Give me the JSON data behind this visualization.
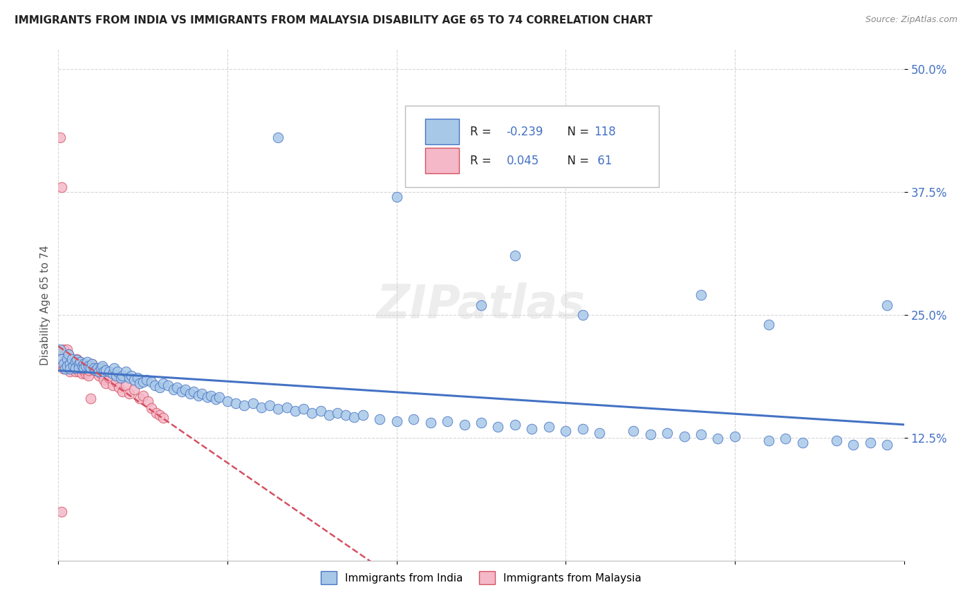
{
  "title": "IMMIGRANTS FROM INDIA VS IMMIGRANTS FROM MALAYSIA DISABILITY AGE 65 TO 74 CORRELATION CHART",
  "source": "Source: ZipAtlas.com",
  "ylabel": "Disability Age 65 to 74",
  "legend_india": "Immigrants from India",
  "legend_malaysia": "Immigrants from Malaysia",
  "R_india": -0.239,
  "N_india": 118,
  "R_malaysia": 0.045,
  "N_malaysia": 61,
  "color_india": "#a8c8e8",
  "color_malaysia": "#f4b8c8",
  "color_india_line": "#4472c4",
  "color_malaysia_line": "#d45060",
  "watermark": "ZIPatlas",
  "india_x": [
    0.001,
    0.002,
    0.003,
    0.004,
    0.005,
    0.005,
    0.006,
    0.007,
    0.007,
    0.008,
    0.009,
    0.01,
    0.01,
    0.011,
    0.012,
    0.012,
    0.013,
    0.014,
    0.015,
    0.015,
    0.016,
    0.017,
    0.018,
    0.019,
    0.02,
    0.021,
    0.022,
    0.023,
    0.024,
    0.025,
    0.026,
    0.027,
    0.028,
    0.03,
    0.032,
    0.033,
    0.034,
    0.035,
    0.037,
    0.038,
    0.04,
    0.042,
    0.043,
    0.045,
    0.047,
    0.048,
    0.05,
    0.052,
    0.055,
    0.057,
    0.06,
    0.062,
    0.065,
    0.068,
    0.07,
    0.073,
    0.075,
    0.078,
    0.08,
    0.083,
    0.085,
    0.088,
    0.09,
    0.093,
    0.095,
    0.1,
    0.105,
    0.11,
    0.115,
    0.12,
    0.125,
    0.13,
    0.135,
    0.14,
    0.145,
    0.15,
    0.155,
    0.16,
    0.165,
    0.17,
    0.175,
    0.18,
    0.19,
    0.2,
    0.21,
    0.22,
    0.23,
    0.24,
    0.25,
    0.26,
    0.27,
    0.28,
    0.29,
    0.3,
    0.31,
    0.32,
    0.34,
    0.35,
    0.36,
    0.37,
    0.38,
    0.39,
    0.4,
    0.42,
    0.43,
    0.44,
    0.46,
    0.47,
    0.48,
    0.49,
    0.25,
    0.31,
    0.38,
    0.42,
    0.49,
    0.13,
    0.2,
    0.27
  ],
  "india_y": [
    0.215,
    0.205,
    0.2,
    0.195,
    0.205,
    0.198,
    0.21,
    0.2,
    0.195,
    0.205,
    0.198,
    0.202,
    0.196,
    0.204,
    0.2,
    0.196,
    0.202,
    0.198,
    0.2,
    0.196,
    0.198,
    0.202,
    0.198,
    0.196,
    0.2,
    0.196,
    0.194,
    0.196,
    0.192,
    0.196,
    0.198,
    0.192,
    0.194,
    0.192,
    0.19,
    0.196,
    0.188,
    0.192,
    0.186,
    0.188,
    0.192,
    0.186,
    0.188,
    0.184,
    0.186,
    0.18,
    0.182,
    0.184,
    0.182,
    0.178,
    0.176,
    0.18,
    0.178,
    0.174,
    0.176,
    0.172,
    0.174,
    0.17,
    0.172,
    0.168,
    0.17,
    0.166,
    0.168,
    0.164,
    0.166,
    0.162,
    0.16,
    0.158,
    0.16,
    0.156,
    0.158,
    0.154,
    0.156,
    0.152,
    0.154,
    0.15,
    0.152,
    0.148,
    0.15,
    0.148,
    0.146,
    0.148,
    0.144,
    0.142,
    0.144,
    0.14,
    0.142,
    0.138,
    0.14,
    0.136,
    0.138,
    0.134,
    0.136,
    0.132,
    0.134,
    0.13,
    0.132,
    0.128,
    0.13,
    0.126,
    0.128,
    0.124,
    0.126,
    0.122,
    0.124,
    0.12,
    0.122,
    0.118,
    0.12,
    0.118,
    0.26,
    0.25,
    0.27,
    0.24,
    0.26,
    0.43,
    0.37,
    0.31
  ],
  "malaysia_x": [
    0.001,
    0.002,
    0.002,
    0.003,
    0.003,
    0.004,
    0.004,
    0.005,
    0.005,
    0.006,
    0.006,
    0.007,
    0.007,
    0.008,
    0.008,
    0.009,
    0.009,
    0.01,
    0.01,
    0.011,
    0.011,
    0.012,
    0.012,
    0.013,
    0.013,
    0.014,
    0.014,
    0.015,
    0.015,
    0.016,
    0.016,
    0.017,
    0.017,
    0.018,
    0.018,
    0.019,
    0.02,
    0.021,
    0.022,
    0.023,
    0.024,
    0.025,
    0.026,
    0.027,
    0.028,
    0.03,
    0.032,
    0.034,
    0.036,
    0.038,
    0.04,
    0.042,
    0.045,
    0.048,
    0.05,
    0.053,
    0.055,
    0.058,
    0.06,
    0.062,
    0.002
  ],
  "malaysia_y": [
    0.43,
    0.38,
    0.2,
    0.215,
    0.195,
    0.21,
    0.198,
    0.215,
    0.2,
    0.21,
    0.195,
    0.2,
    0.192,
    0.204,
    0.196,
    0.202,
    0.195,
    0.2,
    0.192,
    0.198,
    0.205,
    0.196,
    0.192,
    0.202,
    0.196,
    0.198,
    0.19,
    0.2,
    0.194,
    0.196,
    0.19,
    0.196,
    0.192,
    0.188,
    0.194,
    0.165,
    0.2,
    0.194,
    0.196,
    0.192,
    0.188,
    0.19,
    0.196,
    0.184,
    0.18,
    0.186,
    0.178,
    0.182,
    0.176,
    0.172,
    0.178,
    0.17,
    0.174,
    0.165,
    0.168,
    0.162,
    0.155,
    0.15,
    0.148,
    0.145,
    0.05
  ],
  "xmin": 0.0,
  "xmax": 0.5,
  "ymin": 0.0,
  "ymax": 0.52,
  "yticks": [
    0.125,
    0.25,
    0.375,
    0.5
  ],
  "ytick_labels": [
    "12.5%",
    "25.0%",
    "37.5%",
    "50.0%"
  ]
}
